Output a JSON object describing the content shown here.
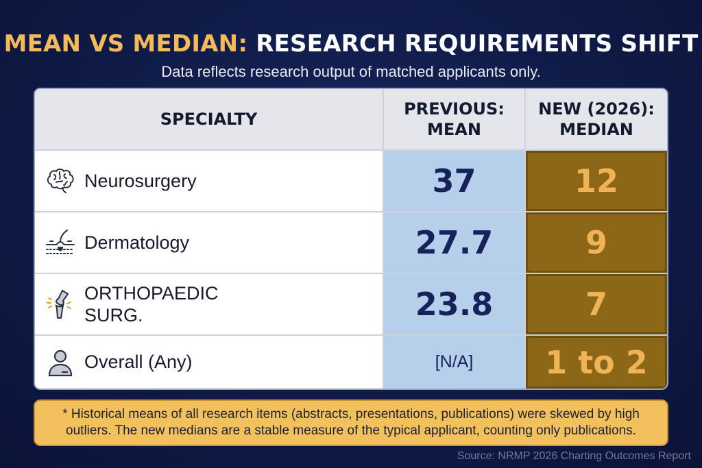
{
  "title": {
    "part1": "MEAN VS MEDIAN:",
    "part2": "RESEARCH REQUIREMENTS SHIFT"
  },
  "subtitle": "Data reflects research output of matched applicants only.",
  "table": {
    "headers": {
      "specialty": "SPECIALTY",
      "previous": "PREVIOUS:\nMEAN",
      "new": "NEW (2026):\nMEDIAN"
    },
    "rows": [
      {
        "icon": "brain-icon",
        "specialty": "Neurosurgery",
        "mean": "37",
        "median": "12"
      },
      {
        "icon": "skin-hair-icon",
        "specialty": "Dermatology",
        "mean": "27.7",
        "median": "9"
      },
      {
        "icon": "knee-joint-icon",
        "specialty": "ORTHOPAEDIC\nSURG.",
        "mean": "23.8",
        "median": "7"
      },
      {
        "icon": "person-icon",
        "specialty": "Overall (Any)",
        "mean": "[N/A]",
        "median": "1 to 2"
      }
    ]
  },
  "note": "* Historical means of all research items (abstracts, presentations, publications) were skewed by high outliers. The new medians are a stable measure of the typical applicant, counting only publications.",
  "source": "Source: NRMP 2026 Charting Outcomes Report",
  "colors": {
    "background": "#0f1a45",
    "title_accent": "#f4b95a",
    "mean_column": "#b6cfeb",
    "median_column": "#8c6717",
    "median_text": "#f0b457",
    "note_background": "#f2c15e"
  }
}
